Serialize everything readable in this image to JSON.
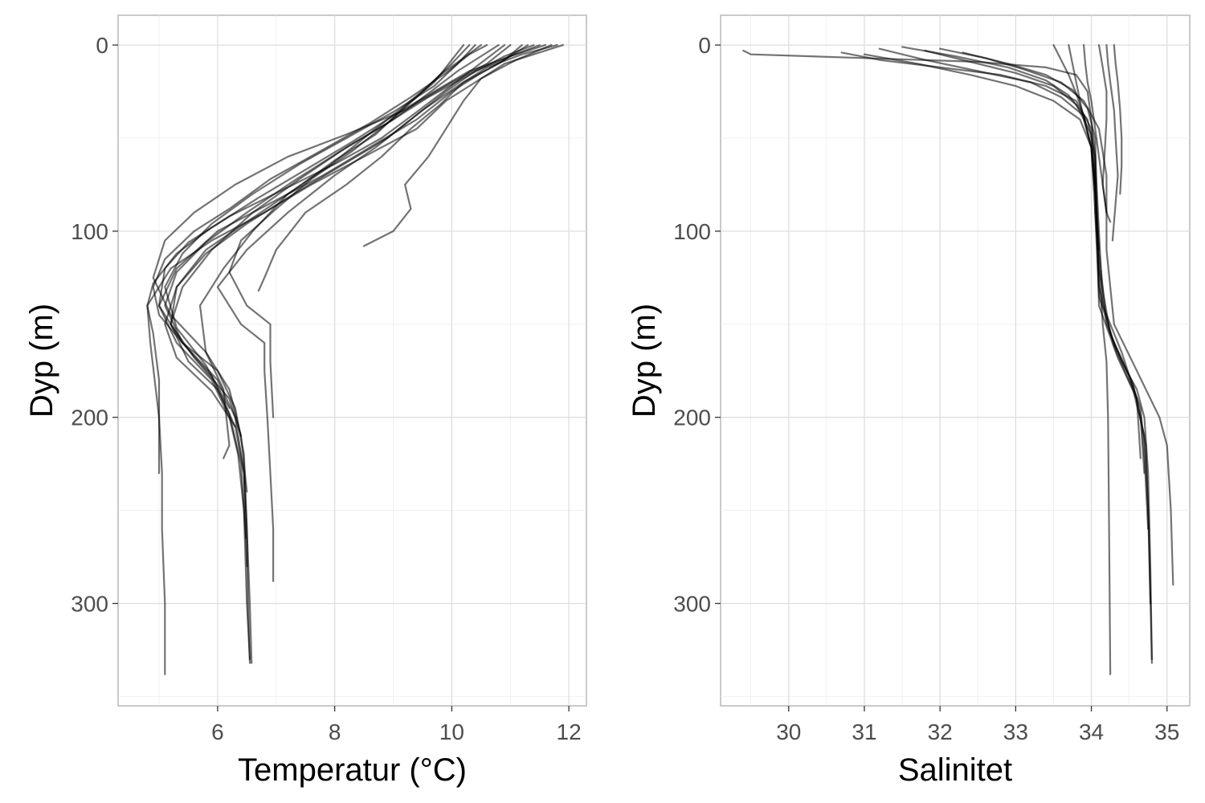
{
  "chart_data": [
    {
      "type": "line",
      "xlabel": "Temperatur (°C)",
      "ylabel": "Dyp (m)",
      "xlim": [
        4.3,
        12.3
      ],
      "ylim": [
        355,
        -16
      ],
      "y_reversed": true,
      "x_ticks": [
        6,
        8,
        10,
        12
      ],
      "y_ticks": [
        0,
        100,
        200,
        300
      ],
      "grid": true,
      "legend": "none",
      "line_color": "#000000",
      "line_opacity": 0.55,
      "series": [
        {
          "x": [
            11.9,
            11.4,
            10.9,
            10.4,
            9.9,
            9.4,
            8.5,
            7.6,
            6.8,
            5.9,
            5.2,
            4.8,
            4.85,
            5.0,
            5.05,
            5.05,
            5.1,
            5.1
          ],
          "y": [
            0,
            5,
            10,
            20,
            30,
            45,
            60,
            75,
            90,
            105,
            120,
            140,
            160,
            200,
            230,
            260,
            300,
            338
          ]
        },
        {
          "x": [
            11.2,
            10.9,
            10.5,
            10.0,
            9.4,
            8.6,
            7.8,
            6.9,
            6.0,
            5.3,
            5.0,
            5.3,
            5.9,
            6.2,
            6.35,
            6.45,
            6.5,
            6.55
          ],
          "y": [
            0,
            8,
            15,
            25,
            40,
            55,
            70,
            85,
            100,
            120,
            140,
            160,
            180,
            200,
            220,
            250,
            300,
            330
          ]
        },
        {
          "x": [
            10.8,
            10.5,
            10.1,
            9.6,
            9.0,
            8.2,
            7.4,
            6.6,
            5.9,
            5.4,
            5.2,
            5.5,
            6.0,
            6.3,
            6.45,
            6.5,
            6.52,
            6.55
          ],
          "y": [
            0,
            6,
            14,
            26,
            40,
            55,
            72,
            90,
            110,
            130,
            150,
            170,
            185,
            205,
            230,
            260,
            300,
            332
          ]
        },
        {
          "x": [
            11.6,
            11.0,
            10.4,
            9.9,
            9.3,
            8.7,
            8.0,
            7.2,
            6.5,
            6.0,
            6.4,
            6.8,
            6.8,
            6.85,
            6.9,
            6.95,
            6.95
          ],
          "y": [
            0,
            6,
            14,
            25,
            40,
            55,
            70,
            90,
            110,
            130,
            150,
            160,
            175,
            200,
            230,
            260,
            288
          ]
        },
        {
          "x": [
            11.3,
            10.8,
            10.2,
            9.8,
            9.3,
            8.8,
            8.2,
            7.5,
            7.0,
            6.8,
            6.7
          ],
          "y": [
            0,
            10,
            20,
            32,
            45,
            60,
            75,
            90,
            110,
            125,
            132
          ]
        },
        {
          "x": [
            10.3,
            10.0,
            9.6,
            9.1,
            8.5,
            7.9,
            7.2,
            6.6,
            6.1,
            5.7,
            5.8,
            6.1,
            6.15,
            6.2,
            6.1
          ],
          "y": [
            0,
            10,
            22,
            35,
            50,
            65,
            80,
            100,
            120,
            140,
            165,
            185,
            200,
            215,
            222
          ]
        },
        {
          "x": [
            11.7,
            11.1,
            10.5,
            10.2,
            9.9,
            9.6,
            9.2,
            9.3,
            9.0,
            8.5
          ],
          "y": [
            0,
            8,
            18,
            30,
            45,
            60,
            75,
            88,
            100,
            108
          ]
        },
        {
          "x": [
            10.6,
            10.3,
            9.9,
            9.3,
            8.6,
            7.7,
            6.9,
            6.2,
            5.6,
            5.1,
            4.9,
            5.0,
            5.4,
            6.0,
            6.3,
            6.45,
            6.5,
            6.55,
            6.58
          ],
          "y": [
            0,
            5,
            15,
            28,
            42,
            58,
            72,
            88,
            100,
            115,
            130,
            145,
            160,
            175,
            195,
            220,
            260,
            300,
            332
          ]
        },
        {
          "x": [
            11.0,
            10.6,
            10.0,
            9.2,
            8.2,
            7.2,
            6.3,
            5.6,
            5.1,
            4.9,
            5.2,
            5.8,
            6.2,
            6.4,
            6.5
          ],
          "y": [
            0,
            10,
            20,
            35,
            48,
            60,
            75,
            90,
            105,
            125,
            145,
            165,
            185,
            210,
            240
          ]
        },
        {
          "x": [
            10.2,
            10.0,
            9.7,
            9.2,
            8.7,
            8.0,
            7.3,
            6.5,
            5.8,
            5.3,
            5.2,
            5.6,
            6.2,
            6.4
          ],
          "y": [
            0,
            8,
            20,
            33,
            48,
            62,
            78,
            95,
            110,
            130,
            150,
            168,
            190,
            210
          ]
        },
        {
          "x": [
            11.5,
            11.0,
            10.3,
            9.7,
            9.0,
            8.3,
            7.5,
            6.7,
            5.9,
            5.3,
            4.9,
            4.8,
            4.9,
            5.0,
            5.0
          ],
          "y": [
            0,
            6,
            14,
            25,
            38,
            52,
            67,
            82,
            98,
            112,
            128,
            140,
            155,
            180,
            230
          ]
        },
        {
          "x": [
            10.5,
            10.2,
            9.8,
            9.4,
            8.9,
            8.3,
            7.6,
            7.0,
            6.4,
            6.2,
            6.5,
            6.9,
            6.9,
            6.95
          ],
          "y": [
            0,
            7,
            16,
            28,
            42,
            57,
            72,
            88,
            105,
            122,
            140,
            150,
            170,
            200
          ]
        },
        {
          "x": [
            10.9,
            10.4,
            9.9,
            9.4,
            8.8,
            8.0,
            7.1,
            6.2,
            5.5,
            5.1,
            5.0,
            5.4,
            6.0,
            6.3,
            6.45,
            6.5
          ],
          "y": [
            0,
            12,
            24,
            36,
            50,
            64,
            78,
            92,
            106,
            120,
            140,
            160,
            180,
            200,
            230,
            280
          ]
        },
        {
          "x": [
            11.8,
            11.2,
            10.6,
            10.1,
            9.5,
            8.9,
            8.1,
            7.3,
            6.5,
            5.8,
            5.3,
            5.1,
            5.3,
            5.9,
            6.3
          ],
          "y": [
            0,
            5,
            12,
            22,
            35,
            50,
            65,
            80,
            96,
            112,
            130,
            150,
            168,
            186,
            205
          ]
        },
        {
          "x": [
            10.4,
            10.1,
            9.7,
            9.0,
            8.2,
            7.4,
            6.6,
            5.9,
            5.4,
            5.1,
            5.3,
            5.8,
            6.2
          ],
          "y": [
            0,
            10,
            22,
            36,
            50,
            64,
            80,
            96,
            112,
            130,
            152,
            172,
            195
          ]
        },
        {
          "x": [
            11.4,
            10.9,
            10.3,
            9.6,
            8.9,
            8.1,
            7.3,
            6.5,
            5.8,
            5.3,
            5.1,
            5.4,
            5.9,
            6.2,
            6.4,
            6.48
          ],
          "y": [
            0,
            6,
            16,
            28,
            42,
            57,
            73,
            90,
            106,
            122,
            140,
            160,
            178,
            198,
            225,
            265
          ]
        }
      ]
    },
    {
      "type": "line",
      "xlabel": "Salinitet",
      "ylabel": "Dyp (m)",
      "xlim": [
        29.1,
        35.3
      ],
      "ylim": [
        355,
        -16
      ],
      "y_reversed": true,
      "x_ticks": [
        30,
        31,
        32,
        33,
        34,
        35
      ],
      "y_ticks": [
        0,
        100,
        200,
        300
      ],
      "grid": true,
      "legend": "none",
      "line_color": "#000000",
      "line_opacity": 0.55,
      "series": [
        {
          "x": [
            29.4,
            29.5,
            31.0,
            32.5,
            33.4,
            33.8,
            33.95,
            34.0,
            34.05,
            34.05,
            34.1,
            34.15,
            34.2,
            34.22,
            34.23,
            34.24,
            34.25
          ],
          "y": [
            3,
            5,
            7,
            9,
            12,
            16,
            25,
            40,
            60,
            90,
            120,
            150,
            170,
            200,
            240,
            290,
            338
          ]
        },
        {
          "x": [
            30.7,
            31.2,
            32.0,
            32.8,
            33.4,
            33.8,
            34.0,
            34.05,
            34.1,
            34.2,
            34.4,
            34.6,
            34.7,
            34.75,
            34.78,
            34.8
          ],
          "y": [
            4,
            8,
            12,
            16,
            22,
            30,
            45,
            70,
            110,
            150,
            170,
            185,
            200,
            230,
            280,
            330
          ]
        },
        {
          "x": [
            31.2,
            31.8,
            32.5,
            33.2,
            33.6,
            33.9,
            34.0,
            34.05,
            34.1,
            34.25,
            34.5,
            34.65,
            34.7,
            34.75
          ],
          "y": [
            2,
            8,
            14,
            20,
            28,
            38,
            55,
            80,
            120,
            155,
            178,
            195,
            220,
            260
          ]
        },
        {
          "x": [
            31.5,
            32.2,
            32.9,
            33.4,
            33.7,
            33.95,
            34.05,
            34.1,
            34.15,
            34.4,
            34.6,
            34.65
          ],
          "y": [
            1,
            6,
            12,
            19,
            27,
            40,
            60,
            100,
            140,
            165,
            190,
            222
          ]
        },
        {
          "x": [
            32.0,
            32.6,
            33.1,
            33.6,
            33.9,
            34.1,
            34.2,
            34.2,
            34.3,
            34.6,
            34.9,
            35.0,
            35.05,
            35.08
          ],
          "y": [
            2,
            7,
            13,
            20,
            30,
            45,
            70,
            110,
            150,
            175,
            200,
            215,
            250,
            290
          ]
        },
        {
          "x": [
            33.7,
            33.75,
            33.8,
            33.85,
            33.9,
            34.0,
            34.05,
            34.1
          ],
          "y": [
            0,
            10,
            20,
            30,
            40,
            55,
            80,
            110
          ]
        },
        {
          "x": [
            34.2,
            34.22,
            34.25,
            34.3,
            34.32,
            34.35,
            34.3,
            34.28
          ],
          "y": [
            0,
            10,
            20,
            35,
            50,
            70,
            95,
            105
          ]
        },
        {
          "x": [
            34.3,
            34.32,
            34.35,
            34.38,
            34.4,
            34.4,
            34.38
          ],
          "y": [
            0,
            10,
            20,
            35,
            50,
            65,
            80
          ]
        },
        {
          "x": [
            33.9,
            33.92,
            33.95,
            34.0,
            34.05,
            34.1,
            34.15,
            34.2,
            34.25
          ],
          "y": [
            0,
            10,
            20,
            30,
            45,
            60,
            75,
            90,
            95
          ]
        },
        {
          "x": [
            31.8,
            32.4,
            33.0,
            33.5,
            33.8,
            34.0,
            34.05,
            34.1,
            34.3,
            34.55,
            34.7,
            34.75,
            34.78
          ],
          "y": [
            3,
            9,
            15,
            22,
            32,
            48,
            75,
            130,
            162,
            185,
            210,
            250,
            300
          ]
        },
        {
          "x": [
            32.3,
            32.9,
            33.4,
            33.75,
            33.95,
            34.05,
            34.1,
            34.35,
            34.6,
            34.72,
            34.76,
            34.8
          ],
          "y": [
            4,
            10,
            16,
            24,
            34,
            50,
            140,
            168,
            190,
            215,
            260,
            332
          ]
        },
        {
          "x": [
            31.0,
            31.7,
            32.4,
            33.0,
            33.5,
            33.85,
            34.0,
            34.05,
            34.1,
            34.3,
            34.55,
            34.65,
            34.7
          ],
          "y": [
            5,
            10,
            16,
            22,
            30,
            40,
            55,
            90,
            135,
            160,
            182,
            200,
            230
          ]
        },
        {
          "x": [
            33.5,
            33.6,
            33.7,
            33.8,
            33.9,
            34.0,
            34.05
          ],
          "y": [
            0,
            8,
            16,
            26,
            38,
            55,
            75
          ]
        },
        {
          "x": [
            34.1,
            34.15,
            34.2,
            34.2,
            34.18,
            34.15,
            34.2
          ],
          "y": [
            0,
            12,
            25,
            40,
            55,
            75,
            90
          ]
        }
      ]
    }
  ]
}
